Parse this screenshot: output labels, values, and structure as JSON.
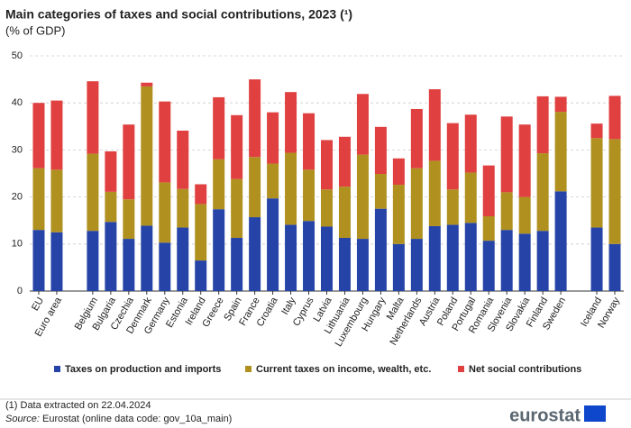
{
  "chart_data": {
    "type": "stacked_bar",
    "title": "Main categories of taxes and social contributions, 2023 (¹)",
    "subtitle": "(% of GDP)",
    "categories": [
      "EU",
      "Euro area",
      null,
      "Belgium",
      "Bulgaria",
      "Czechia",
      "Denmark",
      "Germany",
      "Estonia",
      "Ireland",
      "Greece",
      "Spain",
      "France",
      "Croatia",
      "Italy",
      "Cyprus",
      "Latvia",
      "Lithuania",
      "Luxembourg",
      "Hungary",
      "Malta",
      "Netherlands",
      "Austria",
      "Poland",
      "Portugal",
      "Romania",
      "Slovenia",
      "Slovakia",
      "Finland",
      "Sweden",
      null,
      "Iceland",
      "Norway"
    ],
    "series": [
      {
        "name": "Taxes on production and imports",
        "color": "#2644a7",
        "values": [
          13.0,
          12.5,
          null,
          12.8,
          14.7,
          11.1,
          13.9,
          10.3,
          13.5,
          6.5,
          17.4,
          11.3,
          15.7,
          19.7,
          14.1,
          14.9,
          13.7,
          11.3,
          11.1,
          17.5,
          10.0,
          11.1,
          13.8,
          14.1,
          14.5,
          10.7,
          13.0,
          12.2,
          12.8,
          21.2,
          null,
          13.5,
          10.0
        ]
      },
      {
        "name": "Current taxes on income, wealth, etc.",
        "color": "#b09120",
        "values": [
          13.1,
          13.3,
          null,
          16.4,
          6.4,
          8.4,
          29.6,
          12.8,
          8.2,
          12.0,
          10.6,
          12.5,
          12.8,
          7.4,
          15.3,
          10.9,
          7.9,
          10.9,
          17.9,
          7.4,
          12.6,
          15.0,
          13.9,
          7.5,
          10.7,
          5.2,
          8.0,
          7.8,
          16.5,
          16.9,
          null,
          19.0,
          22.3
        ]
      },
      {
        "name": "Net social contributions",
        "color": "#e04040",
        "values": [
          13.9,
          14.7,
          null,
          15.4,
          8.6,
          15.9,
          0.8,
          17.2,
          12.4,
          4.2,
          13.2,
          13.6,
          16.5,
          10.9,
          12.9,
          12.0,
          10.5,
          10.6,
          12.9,
          10.0,
          5.6,
          12.6,
          15.2,
          14.1,
          12.3,
          10.8,
          16.1,
          15.4,
          12.1,
          3.2,
          null,
          3.1,
          9.2
        ]
      }
    ],
    "ylim": [
      0,
      50
    ],
    "yticks": [
      0,
      10,
      20,
      30,
      40,
      50
    ],
    "grid": true,
    "notes": [
      "(1) Data extracted on 22.04.2024"
    ],
    "source": {
      "label": "Source:",
      "text": "Eurostat (online data code: gov_10a_main)"
    },
    "logo": "eurostat"
  }
}
